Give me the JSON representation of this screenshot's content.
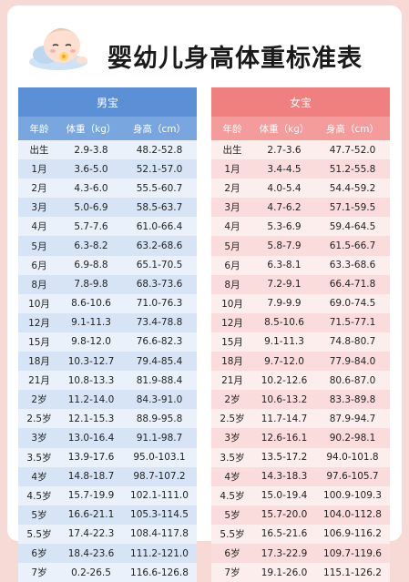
{
  "title": "婴幼儿身高体重标准表",
  "boys": {
    "caption": "男宝",
    "headers": [
      "年龄",
      "体重（kg）",
      "身高（cm）"
    ],
    "rows": [
      [
        "出生",
        "2.9-3.8",
        "48.2-52.8"
      ],
      [
        "1月",
        "3.6-5.0",
        "52.1-57.0"
      ],
      [
        "2月",
        "4.3-6.0",
        "55.5-60.7"
      ],
      [
        "3月",
        "5.0-6.9",
        "58.5-63.7"
      ],
      [
        "4月",
        "5.7-7.6",
        "61.0-66.4"
      ],
      [
        "5月",
        "6.3-8.2",
        "63.2-68.6"
      ],
      [
        "6月",
        "6.9-8.8",
        "65.1-70.5"
      ],
      [
        "8月",
        "7.8-9.8",
        "68.3-73.6"
      ],
      [
        "10月",
        "8.6-10.6",
        "71.0-76.3"
      ],
      [
        "12月",
        "9.1-11.3",
        "73.4-78.8"
      ],
      [
        "15月",
        "9.8-12.0",
        "76.6-82.3"
      ],
      [
        "18月",
        "10.3-12.7",
        "79.4-85.4"
      ],
      [
        "21月",
        "10.8-13.3",
        "81.9-88.4"
      ],
      [
        "2岁",
        "11.2-14.0",
        "84.3-91.0"
      ],
      [
        "2.5岁",
        "12.1-15.3",
        "88.9-95.8"
      ],
      [
        "3岁",
        "13.0-16.4",
        "91.1-98.7"
      ],
      [
        "3.5岁",
        "13.9-17.6",
        "95.0-103.1"
      ],
      [
        "4岁",
        "14.8-18.7",
        "98.7-107.2"
      ],
      [
        "4.5岁",
        "15.7-19.9",
        "102.1-111.0"
      ],
      [
        "5岁",
        "16.6-21.1",
        "105.3-114.5"
      ],
      [
        "5.5岁",
        "17.4-22.3",
        "108.4-117.8"
      ],
      [
        "6岁",
        "18.4-23.6",
        "111.2-121.0"
      ],
      [
        "7岁",
        "0.2-26.5",
        "116.6-126.8"
      ]
    ]
  },
  "girls": {
    "caption": "女宝",
    "headers": [
      "年龄",
      "体重（kg）",
      "身高（cm）"
    ],
    "rows": [
      [
        "出生",
        "2.7-3.6",
        "47.7-52.0"
      ],
      [
        "1月",
        "3.4-4.5",
        "51.2-55.8"
      ],
      [
        "2月",
        "4.0-5.4",
        "54.4-59.2"
      ],
      [
        "3月",
        "4.7-6.2",
        "57.1-59.5"
      ],
      [
        "4月",
        "5.3-6.9",
        "59.4-64.5"
      ],
      [
        "5月",
        "5.8-7.9",
        "61.5-66.7"
      ],
      [
        "6月",
        "6.3-8.1",
        "63.3-68.6"
      ],
      [
        "8月",
        "7.2-9.1",
        "66.4-71.8"
      ],
      [
        "10月",
        "7.9-9.9",
        "69.0-74.5"
      ],
      [
        "12月",
        "8.5-10.6",
        "71.5-77.1"
      ],
      [
        "15月",
        "9.1-11.3",
        "74.8-80.7"
      ],
      [
        "18月",
        "9.7-12.0",
        "77.9-84.0"
      ],
      [
        "21月",
        "10.2-12.6",
        "80.6-87.0"
      ],
      [
        "2岁",
        "10.6-13.2",
        "83.3-89.8"
      ],
      [
        "2.5岁",
        "11.7-14.7",
        "87.9-94.7"
      ],
      [
        "3岁",
        "12.6-16.1",
        "90.2-98.1"
      ],
      [
        "3.5岁",
        "13.5-17.2",
        "94.0-101.8"
      ],
      [
        "4岁",
        "14.3-18.3",
        "97.6-105.7"
      ],
      [
        "4.5岁",
        "15.0-19.4",
        "100.9-109.3"
      ],
      [
        "5岁",
        "15.7-20.0",
        "104.0-112.8"
      ],
      [
        "5.5岁",
        "16.5-21.6",
        "106.9-116.2"
      ],
      [
        "6岁",
        "17.3-22.9",
        "109.7-119.6"
      ],
      [
        "7岁",
        "19.1-26.0",
        "115.1-126.2"
      ]
    ]
  }
}
